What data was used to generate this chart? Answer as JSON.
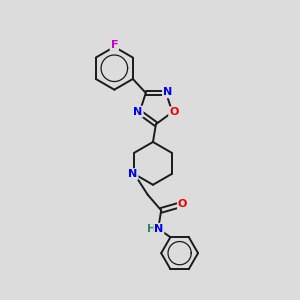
{
  "bg_color": "#dcdcdc",
  "bond_color": "#1a1a1a",
  "bond_width": 1.4,
  "atom_colors": {
    "N": "#0000ee",
    "O": "#ee0000",
    "F": "#cc00cc",
    "H": "#2e8b57",
    "C": "#1a1a1a"
  },
  "font_size_atom": 8.5,
  "font_size_H": 8.0
}
